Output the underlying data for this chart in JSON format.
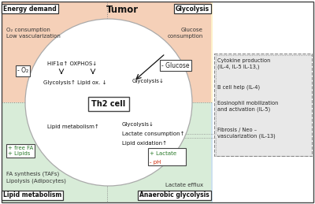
{
  "title": "Tumor",
  "bg_color": "#ffffff",
  "quadrant_colors": {
    "top_left": "#f5d0b8",
    "top_right": "#fdf0c8",
    "bottom_left": "#d8ecd8",
    "bottom_right": "#cce0ee"
  },
  "corner_labels": {
    "top_left": "Energy demand",
    "top_right": "Glycolysis",
    "bottom_left": "Lipid metabolism",
    "bottom_right": "Anaerobic glycolysis"
  },
  "colors": {
    "text_main": "#222222",
    "text_green": "#2a7a2a",
    "text_red": "#cc2200",
    "box_border": "#555555",
    "divider": "#888888",
    "circle_border": "#aaaaaa",
    "panel_bg": "#e8e8e8"
  },
  "figsize": [
    4.0,
    2.59
  ],
  "dpi": 100
}
